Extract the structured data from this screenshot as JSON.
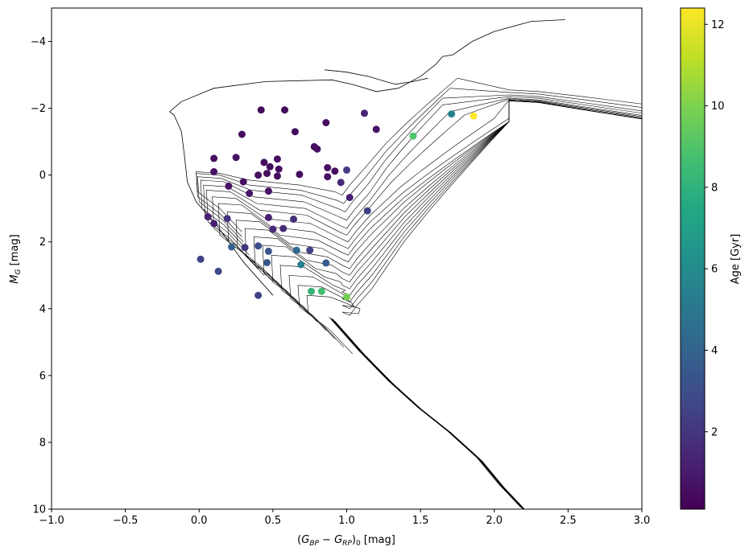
{
  "chart_data": {
    "type": "scatter",
    "xlabel": "(G_BP − G_RP)_0 [mag]",
    "ylabel": "M_G [mag]",
    "xlim": [
      -1.0,
      3.0
    ],
    "ylim": [
      10,
      -5
    ],
    "y_inverted": true,
    "xticks": [
      -1.0,
      -0.5,
      0.0,
      0.5,
      1.0,
      1.5,
      2.0,
      2.5,
      3.0
    ],
    "xtick_labels": [
      "−1.0",
      "−0.5",
      "0.0",
      "0.5",
      "1.0",
      "1.5",
      "2.0",
      "2.5",
      "3.0"
    ],
    "yticks": [
      -4,
      -2,
      0,
      2,
      4,
      6,
      8,
      10
    ],
    "ytick_labels": [
      "−4",
      "−2",
      "0",
      "2",
      "4",
      "6",
      "8",
      "10"
    ],
    "grid": false,
    "colorbar": {
      "label": "Age [Gyr]",
      "colormap": "viridis",
      "range": [
        0.1,
        12.4
      ],
      "ticks": [
        2,
        4,
        6,
        8,
        10,
        12
      ],
      "tick_labels": [
        "2",
        "4",
        "6",
        "8",
        "10",
        "12"
      ]
    },
    "points": [
      {
        "x": 0.42,
        "y": -1.95,
        "age": 0.4
      },
      {
        "x": 0.58,
        "y": -1.95,
        "age": 0.4
      },
      {
        "x": 0.86,
        "y": -1.57,
        "age": 0.5
      },
      {
        "x": 0.29,
        "y": -1.22,
        "age": 0.5
      },
      {
        "x": 0.65,
        "y": -1.3,
        "age": 0.5
      },
      {
        "x": 1.12,
        "y": -1.85,
        "age": 1.3
      },
      {
        "x": 1.2,
        "y": -1.37,
        "age": 0.8
      },
      {
        "x": 0.78,
        "y": -0.85,
        "age": 0.6
      },
      {
        "x": 0.8,
        "y": -0.78,
        "age": 0.6
      },
      {
        "x": 0.1,
        "y": -0.5,
        "age": 0.6
      },
      {
        "x": 0.25,
        "y": -0.53,
        "age": 0.7
      },
      {
        "x": 0.53,
        "y": -0.48,
        "age": 0.5
      },
      {
        "x": 0.44,
        "y": -0.38,
        "age": 0.5
      },
      {
        "x": 0.48,
        "y": -0.25,
        "age": 0.5
      },
      {
        "x": 0.54,
        "y": -0.18,
        "age": 0.5
      },
      {
        "x": 0.1,
        "y": -0.1,
        "age": 0.6
      },
      {
        "x": 0.46,
        "y": -0.05,
        "age": 0.5
      },
      {
        "x": 0.4,
        "y": 0.0,
        "age": 0.6
      },
      {
        "x": 0.53,
        "y": 0.03,
        "age": 0.5
      },
      {
        "x": 0.68,
        "y": -0.02,
        "age": 0.5
      },
      {
        "x": 0.87,
        "y": -0.22,
        "age": 0.6
      },
      {
        "x": 0.92,
        "y": -0.12,
        "age": 0.6
      },
      {
        "x": 0.87,
        "y": 0.05,
        "age": 0.7
      },
      {
        "x": 1.0,
        "y": -0.15,
        "age": 2.2
      },
      {
        "x": 0.3,
        "y": 0.2,
        "age": 0.6
      },
      {
        "x": 0.2,
        "y": 0.33,
        "age": 0.7
      },
      {
        "x": 0.34,
        "y": 0.55,
        "age": 0.8
      },
      {
        "x": 0.47,
        "y": 0.48,
        "age": 0.7
      },
      {
        "x": 0.96,
        "y": 0.22,
        "age": 1.5
      },
      {
        "x": 1.02,
        "y": 0.67,
        "age": 1.2
      },
      {
        "x": 1.14,
        "y": 1.07,
        "age": 2.4
      },
      {
        "x": 0.06,
        "y": 1.25,
        "age": 1.2
      },
      {
        "x": 0.1,
        "y": 1.45,
        "age": 1.1
      },
      {
        "x": 0.19,
        "y": 1.3,
        "age": 1.8
      },
      {
        "x": 0.47,
        "y": 1.27,
        "age": 1.3
      },
      {
        "x": 0.5,
        "y": 1.62,
        "age": 1.5
      },
      {
        "x": 0.57,
        "y": 1.6,
        "age": 1.6
      },
      {
        "x": 0.64,
        "y": 1.32,
        "age": 1.8
      },
      {
        "x": 0.22,
        "y": 2.15,
        "age": 3.8
      },
      {
        "x": 0.31,
        "y": 2.17,
        "age": 1.9
      },
      {
        "x": 0.4,
        "y": 2.12,
        "age": 3.0
      },
      {
        "x": 0.47,
        "y": 2.28,
        "age": 3.3
      },
      {
        "x": 0.66,
        "y": 2.25,
        "age": 4.3
      },
      {
        "x": 0.75,
        "y": 2.25,
        "age": 2.5
      },
      {
        "x": 0.01,
        "y": 2.52,
        "age": 2.4
      },
      {
        "x": 0.46,
        "y": 2.62,
        "age": 3.4
      },
      {
        "x": 0.69,
        "y": 2.68,
        "age": 5.3
      },
      {
        "x": 0.86,
        "y": 2.63,
        "age": 3.6
      },
      {
        "x": 0.13,
        "y": 2.88,
        "age": 2.8
      },
      {
        "x": 0.4,
        "y": 3.6,
        "age": 2.5
      },
      {
        "x": 0.76,
        "y": 3.48,
        "age": 8.2
      },
      {
        "x": 0.83,
        "y": 3.48,
        "age": 8.6
      },
      {
        "x": 1.0,
        "y": 3.65,
        "age": 9.8
      },
      {
        "x": 1.45,
        "y": -1.17,
        "age": 9.0
      },
      {
        "x": 1.71,
        "y": -1.83,
        "age": 5.5
      },
      {
        "x": 1.86,
        "y": -1.77,
        "age": 12.4
      }
    ],
    "isochrone_curves": {
      "main_sequence": [
        [
          0.9,
          4.3
        ],
        [
          1.1,
          5.3
        ],
        [
          1.3,
          6.2
        ],
        [
          1.5,
          7.0
        ],
        [
          1.7,
          7.7
        ],
        [
          1.9,
          8.5
        ],
        [
          2.05,
          9.3
        ],
        [
          2.2,
          10.0
        ]
      ],
      "young_isochrone": [
        [
          0.5,
          3.6
        ],
        [
          0.3,
          2.6
        ],
        [
          0.12,
          1.5
        ],
        [
          -0.02,
          0.8
        ],
        [
          -0.08,
          0.2
        ],
        [
          -0.1,
          -0.6
        ],
        [
          -0.12,
          -1.3
        ],
        [
          -0.17,
          -1.8
        ],
        [
          -0.2,
          -1.9
        ],
        [
          -0.12,
          -2.2
        ],
        [
          0.1,
          -2.6
        ],
        [
          0.45,
          -2.8
        ],
        [
          0.9,
          -2.85
        ],
        [
          1.05,
          -2.7
        ],
        [
          1.2,
          -2.5
        ],
        [
          1.35,
          -2.6
        ],
        [
          1.5,
          -2.95
        ],
        [
          1.6,
          -3.3
        ],
        [
          1.65,
          -3.55
        ],
        [
          1.72,
          -3.6
        ],
        [
          1.85,
          -4.0
        ],
        [
          2.0,
          -4.3
        ],
        [
          2.25,
          -4.6
        ],
        [
          2.48,
          -4.65
        ]
      ],
      "blue_loop": [
        [
          0.85,
          -3.15
        ],
        [
          1.0,
          -3.08
        ],
        [
          1.15,
          -2.95
        ],
        [
          1.28,
          -2.78
        ],
        [
          1.33,
          -2.72
        ],
        [
          1.45,
          -2.8
        ],
        [
          1.55,
          -2.9
        ]
      ],
      "loops": [
        {
          "x0": -0.01,
          "ymin": -0.1,
          "ylo": 0.5,
          "ymid": 0.15,
          "xmin": 0.97,
          "yend": 0.6,
          "xend": 1.75,
          "ytop": -2.9
        },
        {
          "x0": -0.01,
          "ymin": -0.05,
          "ylo": 0.65,
          "ymid": 0.3,
          "xmin": 0.98,
          "yend": 0.85,
          "xend": 1.7,
          "ytop": -2.6
        },
        {
          "x0": 0.0,
          "ymin": 0.05,
          "ylo": 0.8,
          "ymid": 0.45,
          "xmin": 0.99,
          "yend": 1.1,
          "xend": 1.65,
          "ytop": -2.3
        },
        {
          "x0": 0.02,
          "ymin": 0.15,
          "ylo": 1.0,
          "ymid": 0.65,
          "xmin": 1.0,
          "yend": 1.35,
          "xend": 1.65,
          "ytop": -2.1
        },
        {
          "x0": 0.04,
          "ymin": 0.3,
          "ylo": 1.2,
          "ymid": 0.85,
          "xmin": 1.0,
          "yend": 1.6,
          "xend": 1.7,
          "ytop": -1.9
        },
        {
          "x0": 0.06,
          "ymin": 0.45,
          "ylo": 1.4,
          "ymid": 1.05,
          "xmin": 1.0,
          "yend": 1.8,
          "xend": 1.8,
          "ytop": -1.8
        },
        {
          "x0": 0.1,
          "ymin": 0.65,
          "ylo": 1.6,
          "ymid": 1.3,
          "xmin": 1.01,
          "yend": 2.0,
          "xend": 2.0,
          "ytop": -1.7
        },
        {
          "x0": 0.14,
          "ymin": 0.85,
          "ylo": 1.8,
          "ymid": 1.55,
          "xmin": 1.01,
          "yend": 2.2,
          "xend": 2.1,
          "ytop": -1.7
        },
        {
          "x0": 0.2,
          "ymin": 1.1,
          "ylo": 2.0,
          "ymid": 1.8,
          "xmin": 1.01,
          "yend": 2.4,
          "xend": 2.1,
          "ytop": -1.6
        },
        {
          "x0": 0.26,
          "ymin": 1.35,
          "ylo": 2.2,
          "ymid": 2.05,
          "xmin": 1.01,
          "yend": 2.6,
          "xend": 2.1,
          "ytop": -1.6
        },
        {
          "x0": 0.32,
          "ymin": 1.6,
          "ylo": 2.45,
          "ymid": 2.3,
          "xmin": 1.02,
          "yend": 2.8,
          "xend": 2.1,
          "ytop": -1.6
        },
        {
          "x0": 0.38,
          "ymin": 1.85,
          "ylo": 2.7,
          "ymid": 2.55,
          "xmin": 1.02,
          "yend": 3.0,
          "xend": 2.1,
          "ytop": -1.6
        },
        {
          "x0": 0.44,
          "ymin": 2.1,
          "ylo": 2.95,
          "ymid": 2.8,
          "xmin": 1.02,
          "yend": 3.2,
          "xend": 2.1,
          "ytop": -1.6
        },
        {
          "x0": 0.5,
          "ymin": 2.4,
          "ylo": 3.2,
          "ymid": 3.05,
          "xmin": 1.02,
          "yend": 3.4,
          "xend": 2.1,
          "ytop": -1.6
        },
        {
          "x0": 0.56,
          "ymin": 2.7,
          "ylo": 3.45,
          "ymid": 3.3,
          "xmin": 1.02,
          "yend": 3.6,
          "xend": 2.1,
          "ytop": -1.6
        },
        {
          "x0": 0.62,
          "ymin": 3.0,
          "ylo": 3.7,
          "ymid": 3.55,
          "xmin": 1.02,
          "yend": 3.8,
          "xend": 2.1,
          "ytop": -1.6
        },
        {
          "x0": 0.68,
          "ymin": 3.3,
          "ylo": 3.95,
          "ymid": 3.8,
          "xmin": 1.02,
          "yend": 4.0,
          "xend": 2.1,
          "ytop": -1.6
        },
        {
          "x0": 0.74,
          "ymin": 3.6,
          "ylo": 4.15,
          "ymid": 4.0,
          "xmin": 1.02,
          "yend": 4.2,
          "xend": 2.1,
          "ytop": -1.6
        }
      ]
    }
  }
}
